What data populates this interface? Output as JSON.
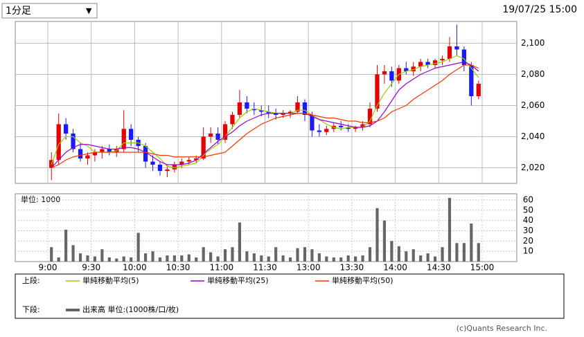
{
  "timeframe": "1分足",
  "timestamp": "19/07/25 15:00",
  "copyright": "(c)Quants Research Inc.",
  "chart_data": {
    "type": "candlestick",
    "xlim": [
      0,
      60
    ],
    "xticks": [
      {
        "value": 0,
        "label": "9:00"
      },
      {
        "value": 6,
        "label": "9:30"
      },
      {
        "value": 12,
        "label": "10:00"
      },
      {
        "value": 18,
        "label": "10:30"
      },
      {
        "value": 24,
        "label": "11:00"
      },
      {
        "value": 30,
        "label": "11:30"
      },
      {
        "value": 36,
        "label": "13:00"
      },
      {
        "value": 42,
        "label": "13:30"
      },
      {
        "value": 48,
        "label": "14:00"
      },
      {
        "value": 54,
        "label": "14:30"
      },
      {
        "value": 60,
        "label": "15:00"
      }
    ],
    "ylim": [
      2010,
      2114
    ],
    "yticks": [
      {
        "value": 2020,
        "label": "2,020"
      },
      {
        "value": 2040,
        "label": "2,040"
      },
      {
        "value": 2060,
        "label": "2,060"
      },
      {
        "value": 2080,
        "label": "2,080"
      },
      {
        "value": 2100,
        "label": "2,100"
      }
    ],
    "grid": true,
    "up_color": "#e60000",
    "down_color": "#1a1aff",
    "upper_label": "上段:",
    "lower_label": "下段:",
    "candles": {
      "open": [
        2020,
        2025,
        2048,
        2042,
        2032,
        2026,
        2028,
        2030,
        2032,
        2030,
        2032,
        2045,
        2038,
        2034,
        2024,
        2022,
        2018,
        2019,
        2022,
        2024,
        2025,
        2026,
        2040,
        2042,
        2038,
        2048,
        2054,
        2062,
        2058,
        2057,
        2056,
        2055,
        2054,
        2055,
        2056,
        2062,
        2054,
        2044,
        2043,
        2045,
        2047,
        2046,
        2045,
        2046,
        2048,
        2058,
        2080,
        2082,
        2076,
        2084,
        2082,
        2085,
        2088,
        2086,
        2089,
        2090,
        2098,
        2096,
        2086,
        2066
      ],
      "high": [
        2030,
        2055,
        2052,
        2045,
        2036,
        2030,
        2032,
        2034,
        2035,
        2034,
        2057,
        2048,
        2040,
        2036,
        2028,
        2024,
        2022,
        2024,
        2026,
        2027,
        2028,
        2046,
        2046,
        2046,
        2050,
        2056,
        2070,
        2066,
        2062,
        2060,
        2060,
        2058,
        2057,
        2057,
        2066,
        2064,
        2056,
        2048,
        2047,
        2049,
        2050,
        2048,
        2047,
        2050,
        2062,
        2086,
        2086,
        2085,
        2086,
        2088,
        2088,
        2090,
        2090,
        2090,
        2092,
        2104,
        2112,
        2098,
        2088,
        2076
      ],
      "low": [
        2012,
        2022,
        2038,
        2030,
        2024,
        2022,
        2024,
        2026,
        2028,
        2027,
        2030,
        2034,
        2030,
        2020,
        2018,
        2015,
        2014,
        2017,
        2020,
        2022,
        2023,
        2025,
        2036,
        2035,
        2036,
        2045,
        2052,
        2055,
        2054,
        2053,
        2052,
        2051,
        2052,
        2052,
        2055,
        2050,
        2040,
        2040,
        2041,
        2043,
        2044,
        2043,
        2043,
        2044,
        2046,
        2056,
        2074,
        2072,
        2074,
        2080,
        2079,
        2082,
        2084,
        2084,
        2086,
        2088,
        2092,
        2082,
        2060,
        2064
      ],
      "close": [
        2025,
        2048,
        2042,
        2032,
        2026,
        2028,
        2030,
        2032,
        2030,
        2032,
        2045,
        2038,
        2034,
        2024,
        2022,
        2018,
        2019,
        2022,
        2024,
        2025,
        2026,
        2040,
        2042,
        2038,
        2048,
        2054,
        2062,
        2058,
        2057,
        2056,
        2055,
        2054,
        2055,
        2056,
        2062,
        2054,
        2044,
        2043,
        2045,
        2047,
        2046,
        2045,
        2046,
        2048,
        2058,
        2080,
        2082,
        2076,
        2084,
        2082,
        2085,
        2088,
        2086,
        2089,
        2090,
        2098,
        2096,
        2086,
        2066,
        2074
      ]
    },
    "series": [
      {
        "name": "単純移動平均(5)",
        "color": "#99cc00",
        "values": [
          2022,
          2035,
          2040,
          2040,
          2036,
          2034,
          2030,
          2030,
          2030,
          2031,
          2036,
          2036,
          2036,
          2034,
          2030,
          2026,
          2021,
          2020,
          2021,
          2022,
          2023,
          2028,
          2032,
          2035,
          2040,
          2046,
          2052,
          2056,
          2058,
          2057,
          2056,
          2055,
          2055,
          2055,
          2057,
          2057,
          2054,
          2051,
          2048,
          2046,
          2045,
          2046,
          2046,
          2046,
          2050,
          2060,
          2068,
          2074,
          2080,
          2082,
          2083,
          2085,
          2086,
          2087,
          2088,
          2090,
          2092,
          2090,
          2084,
          2078
        ]
      },
      {
        "name": "単純移動平均(25)",
        "color": "#9900cc",
        "values": [
          2020,
          2025,
          2030,
          2033,
          2035,
          2035,
          2034,
          2033,
          2032,
          2032,
          2033,
          2033,
          2032,
          2030,
          2027,
          2024,
          2022,
          2022,
          2022,
          2023,
          2025,
          2029,
          2033,
          2037,
          2040,
          2043,
          2047,
          2050,
          2052,
          2054,
          2055,
          2055,
          2055,
          2055,
          2055,
          2055,
          2053,
          2051,
          2050,
          2049,
          2048,
          2047,
          2046,
          2046,
          2047,
          2050,
          2056,
          2063,
          2070,
          2074,
          2077,
          2080,
          2082,
          2084,
          2085,
          2086,
          2087,
          2088,
          2086,
          2082
        ]
      },
      {
        "name": "単純移動平均(50)",
        "color": "#ff3300",
        "values": [
          2020,
          2022,
          2025,
          2027,
          2028,
          2029,
          2030,
          2030,
          2030,
          2030,
          2030,
          2030,
          2030,
          2030,
          2029,
          2028,
          2028,
          2027,
          2027,
          2027,
          2027,
          2027,
          2028,
          2029,
          2030,
          2034,
          2038,
          2042,
          2045,
          2048,
          2050,
          2052,
          2053,
          2054,
          2055,
          2055,
          2054,
          2053,
          2052,
          2052,
          2051,
          2050,
          2050,
          2049,
          2049,
          2050,
          2052,
          2056,
          2058,
          2060,
          2064,
          2067,
          2070,
          2073,
          2076,
          2080,
          2083,
          2086,
          2086,
          2084
        ]
      }
    ],
    "volume": {
      "unit_label": "単位: 1000",
      "name": "出来高 単位:(1000株/口/枚)",
      "color": "#666666",
      "ylim": [
        0,
        66
      ],
      "yticks": [
        10,
        20,
        30,
        40,
        50,
        60
      ],
      "values": [
        14,
        4,
        31,
        16,
        8,
        6,
        5,
        12,
        4,
        3,
        5,
        4,
        28,
        8,
        10,
        4,
        6,
        6,
        6,
        7,
        4,
        14,
        9,
        5,
        12,
        14,
        38,
        10,
        8,
        6,
        5,
        14,
        6,
        4,
        13,
        14,
        12,
        8,
        5,
        4,
        4,
        6,
        5,
        6,
        14,
        52,
        40,
        20,
        15,
        10,
        12,
        6,
        8,
        5,
        14,
        62,
        18,
        18,
        37,
        18
      ]
    }
  }
}
